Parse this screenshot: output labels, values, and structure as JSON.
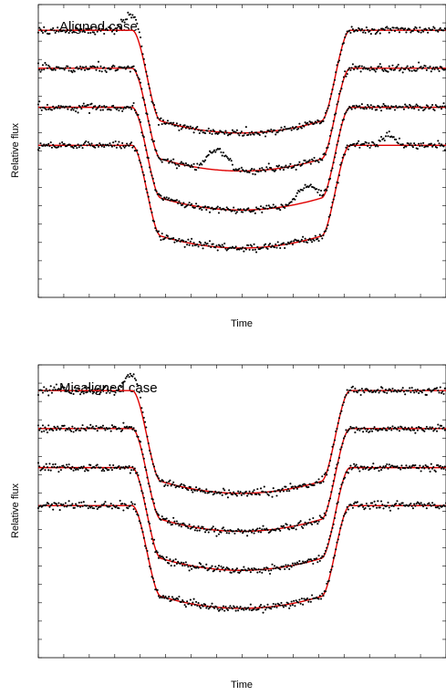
{
  "chart_data": [
    {
      "type": "line",
      "title": "Aligned case",
      "xlabel": "Time",
      "ylabel": "Relative flux",
      "series": [
        {
          "baseline": 0.0,
          "depth": 0.1,
          "spot_bump": {
            "center": 0.23,
            "height": 0.015,
            "width": 0.045
          }
        },
        {
          "baseline": 0.037,
          "depth": 0.1,
          "spot_bump": {
            "center": 0.44,
            "height": 0.02,
            "width": 0.055
          }
        },
        {
          "baseline": 0.075,
          "depth": 0.1,
          "spot_bump": {
            "center": 0.66,
            "height": 0.015,
            "width": 0.055
          }
        },
        {
          "baseline": 0.112,
          "depth": 0.1,
          "spot_bump": {
            "center": 0.86,
            "height": 0.009,
            "width": 0.04
          }
        }
      ],
      "xlim": [
        0,
        1
      ],
      "ylim": [
        -0.26,
        0.025
      ],
      "grid": false
    },
    {
      "type": "line",
      "title": "Misaligned case",
      "xlabel": "Time",
      "ylabel": "Relative flux",
      "series": [
        {
          "baseline": 0.0,
          "depth": 0.1,
          "spot_bump": {
            "center": 0.23,
            "height": 0.015,
            "width": 0.045
          }
        },
        {
          "baseline": 0.037,
          "depth": 0.1,
          "spot_bump": null
        },
        {
          "baseline": 0.075,
          "depth": 0.1,
          "spot_bump": null
        },
        {
          "baseline": 0.112,
          "depth": 0.1,
          "spot_bump": null
        }
      ],
      "xlim": [
        0,
        1
      ],
      "ylim": [
        -0.26,
        0.025
      ],
      "grid": false
    }
  ]
}
